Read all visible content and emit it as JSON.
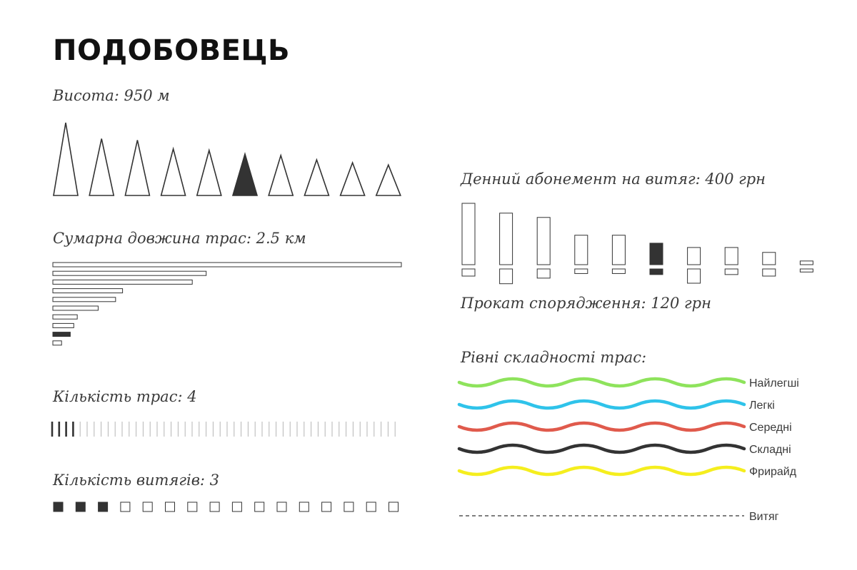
{
  "title": "ПОДОБОВЕЦЬ",
  "colors": {
    "highlight": "#333333",
    "outline": "#333333",
    "muted": "#b5b5b5"
  },
  "chart_data": [
    {
      "type": "pictogram-triangles",
      "label": "Висота: 950 м",
      "values": [
        1,
        0.78,
        0.76,
        0.64,
        0.62,
        0.57,
        0.55,
        0.49,
        0.45,
        0.42
      ],
      "highlight_index": 5
    },
    {
      "type": "bar",
      "label": "Сумарна довжина трас: 2.5 км",
      "orientation": "horizontal",
      "values": [
        100,
        44,
        40,
        20,
        18,
        13,
        7,
        6,
        5,
        2.5
      ],
      "highlight_index": 8
    },
    {
      "type": "tally",
      "label": "Кількість трас: 4",
      "value": 4,
      "total": 50
    },
    {
      "type": "squares",
      "label": "Кількість витягів: 3",
      "value": 3,
      "total": 16
    },
    {
      "type": "bar",
      "label_top": "Денний абонемент на витяг: 400 грн",
      "label_bottom": "Прокат спорядження: 120 грн",
      "orientation": "vertical-mirrored",
      "top_values": [
        100,
        84,
        77,
        48,
        48,
        35,
        28,
        28,
        20,
        6
      ],
      "bottom_values": [
        14,
        29,
        18,
        9,
        9,
        11,
        28,
        11,
        14,
        6
      ],
      "highlight_index": 5
    },
    {
      "type": "legend",
      "label": "Рівні складності трас:",
      "items": [
        {
          "name": "Найлегші",
          "color": "#8ee35c",
          "style": "wave"
        },
        {
          "name": "Легкі",
          "color": "#2fc3ea",
          "style": "wave"
        },
        {
          "name": "Середні",
          "color": "#e05a4c",
          "style": "wave"
        },
        {
          "name": "Складні",
          "color": "#333333",
          "style": "wave"
        },
        {
          "name": "Фрирайд",
          "color": "#f5ee1e",
          "style": "wave"
        },
        {
          "name": "Витяг",
          "color": "#333333",
          "style": "dashed"
        }
      ]
    }
  ]
}
